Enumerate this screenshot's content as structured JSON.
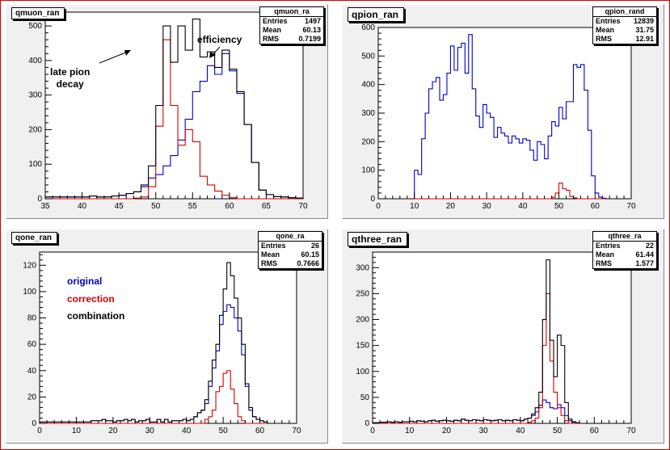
{
  "canvas": {
    "border_color": "#d40000",
    "pad_color": "#f0f0f0"
  },
  "pads": [
    {
      "title": "qmuon_ran",
      "stats": {
        "name": "qmuon_ra",
        "rows": [
          [
            "Entries",
            "1497"
          ],
          [
            "Mean",
            "60.13"
          ],
          [
            "RMS",
            "0.7199"
          ]
        ]
      },
      "annotations": [
        "late pion\ndecay",
        "efficiency"
      ]
    },
    {
      "title": "qpion_ran",
      "stats": {
        "name": "qpion_rand",
        "rows": [
          [
            "Entries",
            "12839"
          ],
          [
            "Mean",
            "31.75"
          ],
          [
            "RMS",
            "12.91"
          ]
        ]
      },
      "annotations": []
    },
    {
      "title": "qone_ran",
      "stats": {
        "name": "qone_ra",
        "rows": [
          [
            "Entries",
            "26"
          ],
          [
            "Mean",
            "60.15"
          ],
          [
            "RMS",
            "0.7666"
          ]
        ]
      },
      "annotations": [
        "original",
        "correction",
        "combination"
      ]
    },
    {
      "title": "qthree_ran",
      "stats": {
        "name": "qthree_ra",
        "rows": [
          [
            "Entries",
            "22"
          ],
          [
            "Mean",
            "61.44"
          ],
          [
            "RMS",
            "1.577"
          ]
        ]
      },
      "annotations": []
    }
  ],
  "chart_data": [
    {
      "type": "line",
      "title": "qmuon_ran",
      "xlim": [
        35,
        70
      ],
      "ylim": [
        0,
        540
      ],
      "xticks": [
        35,
        40,
        45,
        50,
        55,
        60,
        65,
        70
      ],
      "yticks": [
        0,
        100,
        200,
        300,
        400,
        500
      ],
      "grid": false,
      "bins": {
        "start": 35,
        "width": 1
      },
      "series": [
        {
          "color": "#0000cc",
          "values": [
            5,
            5,
            5,
            5,
            5,
            5,
            8,
            5,
            5,
            8,
            10,
            15,
            20,
            35,
            60,
            70,
            95,
            125,
            170,
            230,
            310,
            340,
            385,
            360,
            420,
            370,
            305,
            215,
            105,
            25,
            12,
            6,
            5,
            3,
            2
          ]
        },
        {
          "color": "#dd0000",
          "values": [
            0,
            0,
            0,
            0,
            0,
            0,
            0,
            0,
            0,
            0,
            0,
            0,
            2,
            5,
            35,
            210,
            460,
            270,
            155,
            200,
            165,
            65,
            40,
            22,
            10,
            3,
            0,
            0,
            0,
            0,
            0,
            0,
            0,
            0,
            0
          ]
        },
        {
          "color": "#000000",
          "values": [
            5,
            5,
            5,
            5,
            5,
            5,
            8,
            5,
            5,
            8,
            10,
            15,
            20,
            40,
            95,
            270,
            500,
            395,
            500,
            430,
            520,
            410,
            425,
            380,
            430,
            375,
            310,
            215,
            105,
            25,
            12,
            6,
            5,
            3,
            2
          ]
        }
      ]
    },
    {
      "type": "line",
      "title": "qpion_ran",
      "xlim": [
        0,
        70
      ],
      "ylim": [
        0,
        600
      ],
      "xticks": [
        0,
        10,
        20,
        30,
        40,
        50,
        60,
        70
      ],
      "yticks": [
        0,
        100,
        200,
        300,
        400,
        500,
        600
      ],
      "grid": false,
      "bins": {
        "start": 10,
        "width": 1
      },
      "series": [
        {
          "color": "#0000cc",
          "values": [
            100,
            85,
            210,
            300,
            385,
            410,
            425,
            345,
            365,
            440,
            535,
            450,
            530,
            545,
            440,
            575,
            385,
            290,
            250,
            330,
            300,
            285,
            215,
            250,
            230,
            220,
            195,
            220,
            210,
            195,
            210,
            205,
            170,
            135,
            200,
            190,
            140,
            220,
            270,
            255,
            320,
            280,
            340,
            340,
            470,
            460,
            470,
            380,
            240,
            80,
            20,
            5,
            2
          ]
        },
        {
          "color": "#dd0000",
          "values": [
            0,
            0,
            0,
            0,
            0,
            0,
            0,
            0,
            0,
            0,
            0,
            0,
            0,
            0,
            0,
            0,
            0,
            0,
            0,
            0,
            0,
            0,
            0,
            0,
            0,
            0,
            0,
            0,
            0,
            0,
            0,
            0,
            0,
            0,
            0,
            0,
            0,
            0,
            5,
            20,
            55,
            35,
            30,
            8,
            3,
            0,
            0,
            0,
            0,
            0,
            0,
            0,
            0
          ]
        }
      ]
    },
    {
      "type": "line",
      "title": "qone_ran",
      "xlim": [
        0,
        70
      ],
      "ylim": [
        0,
        130
      ],
      "xticks": [
        0,
        10,
        20,
        30,
        40,
        50,
        60,
        70
      ],
      "yticks": [
        0,
        20,
        40,
        60,
        80,
        100,
        120
      ],
      "grid": false,
      "bins": {
        "start": 0,
        "width": 1
      },
      "legend": [
        "original",
        "correction",
        "combination"
      ],
      "series": [
        {
          "name": "original",
          "color": "#0000cc",
          "values": [
            1,
            1,
            1,
            1,
            1,
            1,
            1,
            1,
            1,
            1,
            1,
            1,
            1,
            1,
            2,
            2,
            2,
            3,
            2,
            2,
            1,
            2,
            2,
            3,
            2,
            3,
            1,
            2,
            2,
            3,
            1,
            1,
            3,
            1,
            3,
            1,
            2,
            2,
            2,
            3,
            2,
            3,
            5,
            8,
            10,
            15,
            28,
            42,
            55,
            75,
            85,
            90,
            88,
            80,
            70,
            52,
            28,
            10,
            5,
            3,
            2,
            1,
            0,
            0,
            0,
            0,
            0,
            0,
            0,
            0
          ]
        },
        {
          "name": "correction",
          "color": "#dd0000",
          "values": [
            0,
            0,
            0,
            0,
            0,
            0,
            0,
            0,
            0,
            0,
            0,
            0,
            0,
            0,
            0,
            0,
            0,
            0,
            0,
            0,
            0,
            0,
            0,
            0,
            0,
            0,
            0,
            0,
            0,
            0,
            0,
            0,
            0,
            0,
            0,
            0,
            0,
            0,
            0,
            0,
            0,
            0,
            0,
            0,
            0,
            3,
            5,
            10,
            24,
            28,
            38,
            40,
            26,
            15,
            5,
            2,
            0,
            0,
            0,
            0,
            0,
            0,
            0,
            0,
            0,
            0,
            0,
            0,
            0,
            0
          ]
        },
        {
          "name": "combination",
          "color": "#000000",
          "values": [
            1,
            1,
            1,
            1,
            1,
            1,
            1,
            1,
            1,
            1,
            1,
            1,
            1,
            1,
            2,
            2,
            2,
            3,
            2,
            2,
            1,
            2,
            2,
            3,
            2,
            3,
            1,
            2,
            2,
            3,
            1,
            1,
            3,
            1,
            3,
            1,
            2,
            2,
            2,
            3,
            2,
            3,
            5,
            8,
            10,
            18,
            32,
            48,
            60,
            82,
            102,
            122,
            112,
            95,
            80,
            60,
            30,
            12,
            5,
            3,
            2,
            1,
            0,
            0,
            0,
            0,
            0,
            0,
            0,
            0
          ]
        }
      ]
    },
    {
      "type": "line",
      "title": "qthree_ran",
      "xlim": [
        0,
        70
      ],
      "ylim": [
        0,
        330
      ],
      "xticks": [
        0,
        10,
        20,
        30,
        40,
        50,
        60,
        70
      ],
      "yticks": [
        0,
        50,
        100,
        150,
        200,
        250,
        300
      ],
      "grid": false,
      "bins": {
        "start": 0,
        "width": 1
      },
      "series": [
        {
          "color": "#0000cc",
          "values": [
            1,
            1,
            2,
            2,
            3,
            2,
            3,
            2,
            3,
            3,
            4,
            3,
            5,
            4,
            3,
            5,
            6,
            4,
            5,
            6,
            5,
            4,
            6,
            5,
            8,
            6,
            5,
            7,
            6,
            5,
            7,
            6,
            5,
            6,
            7,
            5,
            6,
            5,
            7,
            6,
            5,
            8,
            10,
            15,
            22,
            35,
            45,
            40,
            30,
            28,
            36,
            30,
            15,
            5,
            2,
            1,
            0,
            0,
            0,
            0,
            0,
            0,
            0,
            0,
            0,
            0,
            0,
            0,
            0,
            0
          ]
        },
        {
          "color": "#dd0000",
          "values": [
            0,
            0,
            0,
            0,
            0,
            0,
            0,
            0,
            0,
            0,
            0,
            0,
            0,
            0,
            0,
            0,
            0,
            0,
            0,
            0,
            0,
            0,
            0,
            0,
            0,
            0,
            0,
            0,
            0,
            0,
            0,
            0,
            0,
            0,
            0,
            0,
            0,
            0,
            0,
            0,
            0,
            0,
            2,
            5,
            10,
            30,
            150,
            250,
            120,
            60,
            30,
            15,
            5,
            0,
            0,
            0,
            0,
            0,
            0,
            0,
            0,
            0,
            0,
            0,
            0,
            0,
            0,
            0,
            0,
            0
          ]
        },
        {
          "color": "#000000",
          "values": [
            1,
            1,
            2,
            2,
            3,
            2,
            3,
            2,
            3,
            3,
            4,
            3,
            5,
            4,
            3,
            5,
            6,
            4,
            5,
            6,
            5,
            4,
            6,
            5,
            8,
            6,
            5,
            7,
            6,
            5,
            7,
            6,
            5,
            6,
            7,
            5,
            6,
            5,
            7,
            6,
            5,
            8,
            10,
            18,
            30,
            60,
            200,
            315,
            160,
            90,
            170,
            150,
            40,
            8,
            3,
            1,
            0,
            0,
            0,
            0,
            0,
            0,
            0,
            0,
            0,
            0,
            0,
            0,
            0,
            0
          ]
        }
      ]
    }
  ]
}
